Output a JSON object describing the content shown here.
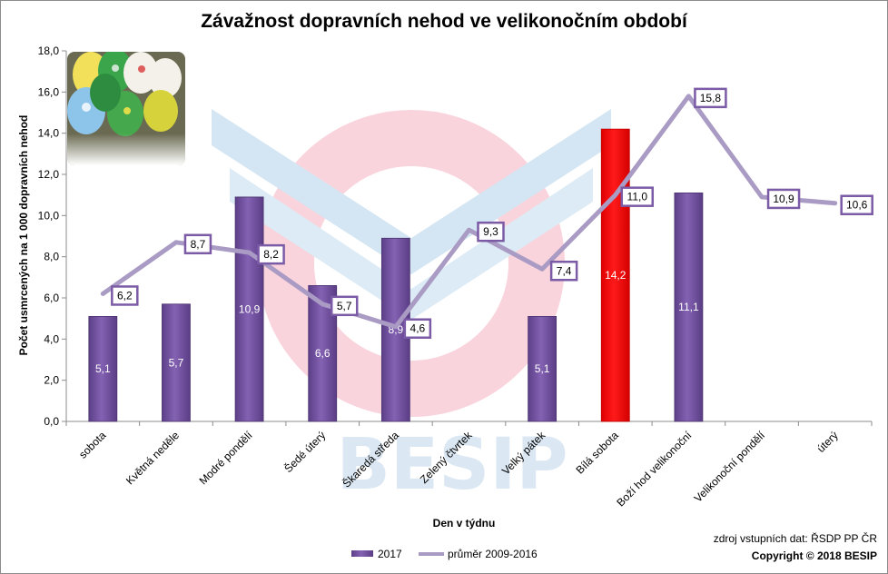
{
  "chart_data": {
    "type": "bar",
    "title": "Závažnost dopravních nehod ve velikonočním období",
    "xlabel": "Den v týdnu",
    "ylabel": "Počet usmrcených  na 1 000 dopravních nehod",
    "ylim": [
      0,
      18
    ],
    "yticks": [
      "0,0",
      "2,0",
      "4,0",
      "6,0",
      "8,0",
      "10,0",
      "12,0",
      "14,0",
      "16,0",
      "18,0"
    ],
    "categories": [
      "sobota",
      "Květná neděle",
      "Modré pondělí",
      "Šedé úterý",
      "Škaredá středa",
      "Zelený čtvrtek",
      "Velký pátek",
      "Bílá sobota",
      "Boží hod velikonoční",
      "Velikonoční pondělí",
      "úterý"
    ],
    "series": [
      {
        "name": "2017",
        "kind": "bar",
        "color": "#7b5aa6",
        "highlight_color": "#ff0000",
        "highlight_index": 7,
        "values": [
          5.1,
          5.7,
          10.9,
          6.6,
          8.9,
          null,
          5.1,
          14.2,
          11.1,
          null,
          null
        ],
        "labels": [
          "5,1",
          "5,7",
          "10,9",
          "6,6",
          "8,9",
          "",
          "5,1",
          "14,2",
          "11,1",
          "",
          ""
        ]
      },
      {
        "name": "průměr 2009-2016",
        "kind": "line",
        "color": "#a99bc4",
        "values": [
          6.2,
          8.7,
          8.2,
          5.7,
          4.6,
          9.3,
          7.4,
          11.0,
          15.8,
          10.9,
          10.6
        ],
        "labels": [
          "6,2",
          "8,7",
          "8,2",
          "5,7",
          "4,6",
          "9,3",
          "7,4",
          "11,0",
          "15,8",
          "10,9",
          "10,6"
        ]
      }
    ],
    "grid": false,
    "legend_position": "bottom"
  },
  "watermark": {
    "text": "BESIP"
  },
  "image": {
    "name": "easter-eggs-photo"
  },
  "footer": {
    "source": "zdroj vstupních dat: ŘSDP PP ČR",
    "copyright": "Copyright © 2018  BESIP"
  },
  "colors": {
    "bar": "#7b5aa6",
    "bar_highlight": "#ff0000",
    "line": "#a99bc4",
    "label_border": "#7b5aa6"
  }
}
